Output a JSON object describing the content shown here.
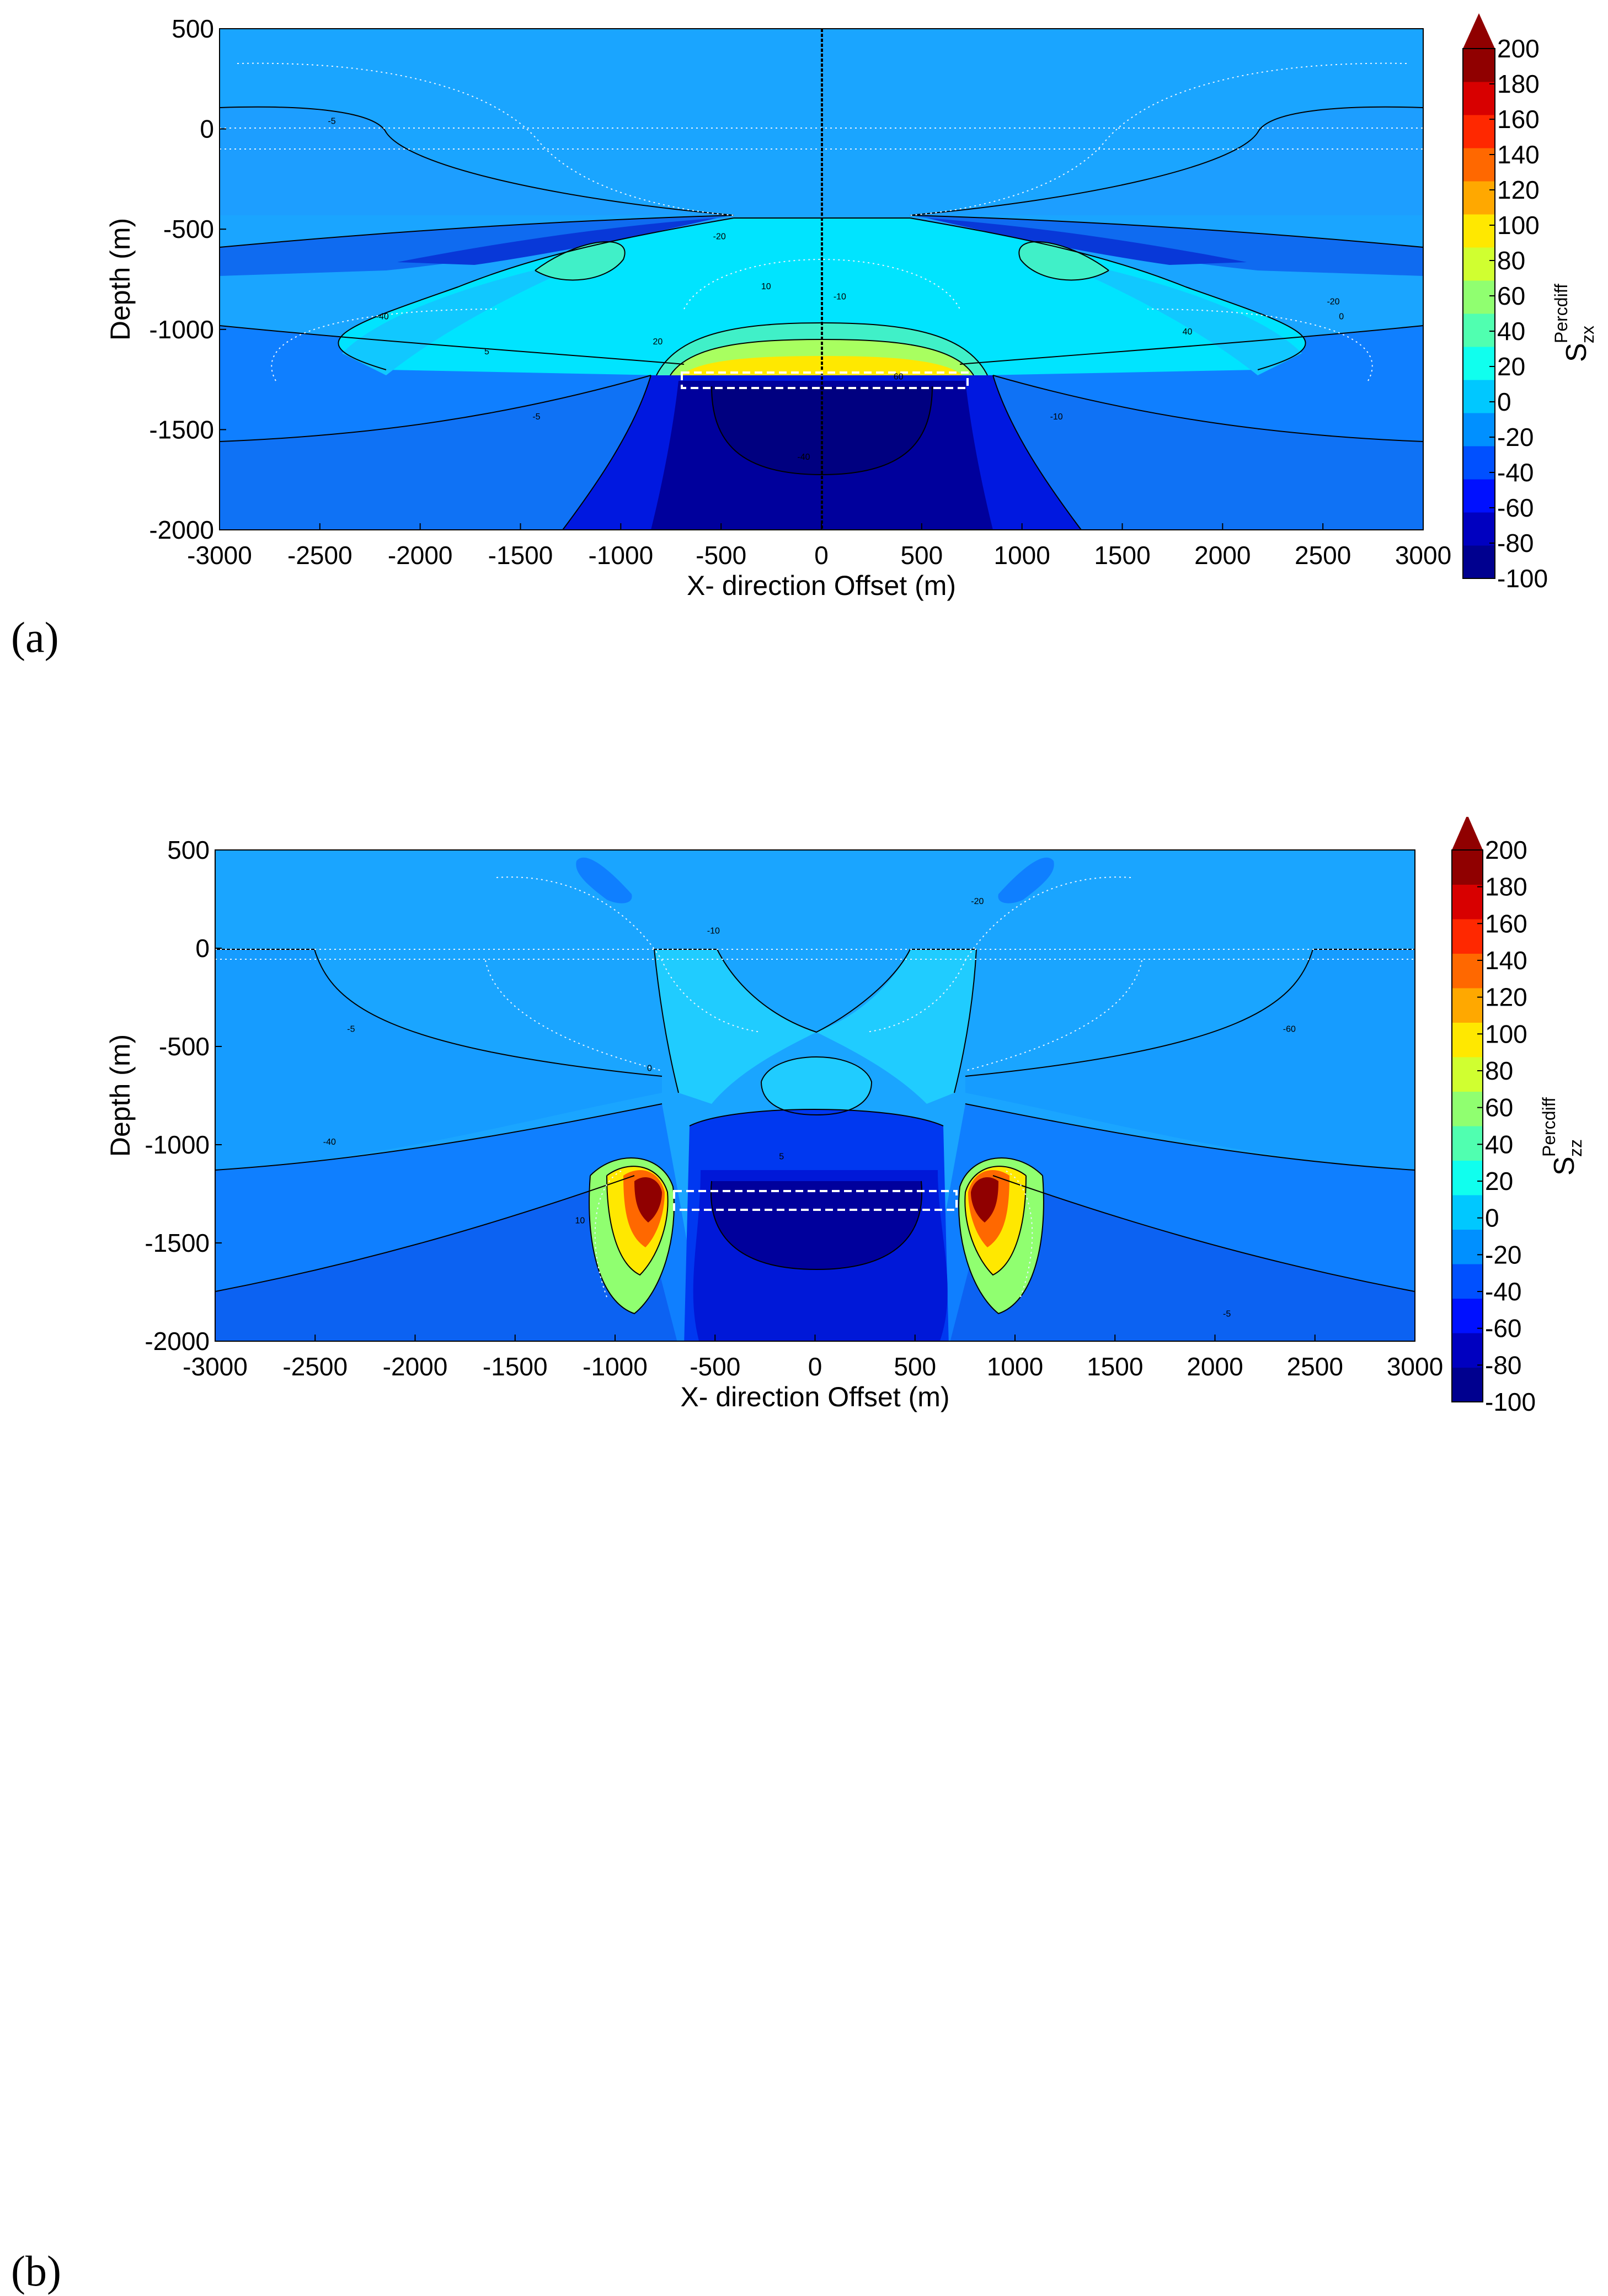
{
  "chart_data": [
    {
      "type": "contour",
      "panel_label": "(a)",
      "xlabel": "X- direction Offset (m)",
      "ylabel": "Depth (m)",
      "xlim": [
        -3000,
        3000
      ],
      "ylim": [
        -2000,
        500
      ],
      "x_ticks": [
        "-3000",
        "-2500",
        "-2000",
        "-1500",
        "-1000",
        "-500",
        "0",
        "500",
        "1000",
        "1500",
        "2000",
        "2500",
        "3000"
      ],
      "y_ticks": [
        "500",
        "0",
        "-500",
        "-1000",
        "-1500",
        "-2000"
      ],
      "colorbar": {
        "label_main": "S",
        "label_sup": "Percdiff",
        "label_sub": "zx",
        "range": [
          -100,
          200
        ],
        "ticks": [
          "200",
          "180",
          "160",
          "140",
          "120",
          "100",
          "80",
          "60",
          "40",
          "20",
          "0",
          "-20",
          "-40",
          "-60",
          "-80",
          "-100"
        ],
        "colors": [
          "#00008f",
          "#0000c0",
          "#0010ff",
          "#0050ff",
          "#0090ff",
          "#00c8ff",
          "#10ffee",
          "#50ffb0",
          "#90ff70",
          "#d0ff30",
          "#ffe800",
          "#ffa800",
          "#ff6800",
          "#ff2800",
          "#d80000",
          "#900000"
        ]
      },
      "contour_labels": [
        "-5",
        "-10",
        "-20",
        "-40",
        "0",
        "5",
        "10",
        "20",
        "40",
        "60"
      ],
      "target_box": {
        "x": [
          -700,
          700
        ],
        "y": [
          -1300,
          -1200
        ]
      }
    },
    {
      "type": "contour",
      "panel_label": "(b)",
      "xlabel": "X- direction Offset (m)",
      "ylabel": "Depth (m)",
      "xlim": [
        -3000,
        3000
      ],
      "ylim": [
        -2000,
        500
      ],
      "x_ticks": [
        "-3000",
        "-2500",
        "-2000",
        "-1500",
        "-1000",
        "-500",
        "0",
        "500",
        "1000",
        "1500",
        "2000",
        "2500",
        "3000"
      ],
      "y_ticks": [
        "500",
        "0",
        "-500",
        "-1000",
        "-1500",
        "-2000"
      ],
      "colorbar": {
        "label_main": "S",
        "label_sup": "Percdiff",
        "label_sub": "zz",
        "range": [
          -100,
          200
        ],
        "ticks": [
          "200",
          "180",
          "160",
          "140",
          "120",
          "100",
          "80",
          "60",
          "40",
          "20",
          "0",
          "-20",
          "-40",
          "-60",
          "-80",
          "-100"
        ],
        "colors": [
          "#00008f",
          "#0000c0",
          "#0010ff",
          "#0050ff",
          "#0090ff",
          "#00c8ff",
          "#10ffee",
          "#50ffb0",
          "#90ff70",
          "#d0ff30",
          "#ffe800",
          "#ffa800",
          "#ff6800",
          "#ff2800",
          "#d80000",
          "#900000"
        ]
      },
      "contour_labels": [
        "-5",
        "-10",
        "-20",
        "-40",
        "-60",
        "0",
        "5",
        "10"
      ],
      "target_box": {
        "x": [
          -700,
          700
        ],
        "y": [
          -1300,
          -1200
        ]
      }
    }
  ]
}
